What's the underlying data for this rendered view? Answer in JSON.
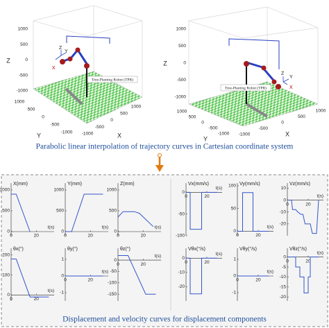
{
  "top": {
    "plots": [
      {
        "axes": [
          {
            "label": "Z",
            "lim": [
              -1000,
              1000
            ],
            "ticks": [
              -1000,
              -500,
              0,
              500,
              1000
            ]
          },
          {
            "label": "Y",
            "lim": [
              -1000,
              1000
            ],
            "ticks": [
              -1000,
              -500,
              0,
              500,
              1000
            ]
          },
          {
            "label": "X",
            "lim": [
              -1000,
              1000
            ],
            "ticks": [
              -1000,
              -500,
              0,
              500,
              1000
            ]
          }
        ],
        "robot_label": "Tree-Planting Robot (TPR)",
        "frame_labels": [
          "Z",
          "Y",
          "X"
        ]
      },
      {
        "axes": [
          {
            "label": "Z",
            "lim": [
              -1000,
              1000
            ],
            "ticks": [
              -1000,
              -500,
              0,
              500,
              1000
            ]
          },
          {
            "label": "Y",
            "lim": [
              -1000,
              1000
            ],
            "ticks": [
              -1000,
              -500,
              0,
              500,
              1000
            ]
          },
          {
            "label": "X",
            "lim": [
              -1000,
              1000
            ],
            "ticks": [
              -1000,
              -500,
              0,
              500,
              1000
            ]
          }
        ],
        "robot_label": "Tree-Planting Robot (TPR)",
        "frame_labels": [
          "Z",
          "Y",
          "X"
        ]
      }
    ],
    "caption": "Parabolic linear interpolation of trajectory curves in Cartesian coordinate system"
  },
  "bottom": {
    "caption": "Displacement and velocity curves for displacement components",
    "panels": [
      {
        "label": "X(mm)",
        "xlabel": "t(s)",
        "xlim": [
          0,
          32
        ],
        "xticks": [
          0,
          20
        ],
        "ylim": [
          -100,
          1100
        ],
        "yticks": [
          0,
          500,
          1000
        ],
        "x": [
          0,
          4,
          15
        ],
        "y": [
          900,
          900,
          0
        ]
      },
      {
        "label": "Y(mm)",
        "xlabel": "t(s)",
        "xlim": [
          0,
          32
        ],
        "xticks": [
          0,
          20
        ],
        "ylim": [
          -100,
          1100
        ],
        "yticks": [
          0,
          500,
          1000
        ],
        "x": [
          0,
          5,
          15,
          30
        ],
        "y": [
          0,
          0,
          900,
          900
        ]
      },
      {
        "label": "Z(mm)",
        "xlabel": "t(s)",
        "xlim": [
          0,
          32
        ],
        "xticks": [
          0,
          20
        ],
        "ylim": [
          -100,
          1100
        ],
        "yticks": [
          0,
          500,
          1000
        ],
        "x": [
          0,
          4,
          13,
          17,
          28
        ],
        "y": [
          350,
          480,
          480,
          440,
          120
        ]
      },
      {
        "label": "θx(°)",
        "xlabel": "t(s)",
        "xlim": [
          0,
          32
        ],
        "xticks": [
          0,
          20
        ],
        "ylim": [
          -30,
          220
        ],
        "yticks": [
          0,
          100,
          200
        ],
        "x": [
          0,
          4,
          15,
          30
        ],
        "y": [
          180,
          180,
          -10,
          -10
        ]
      },
      {
        "label": "θy(°)",
        "xlabel": "t(s)",
        "xlim": [
          0,
          32
        ],
        "xticks": [
          0,
          20
        ],
        "ylim": [
          -1.5,
          1.5
        ],
        "yticks": [
          -1,
          0,
          1
        ],
        "x": [
          0,
          30
        ],
        "y": [
          0,
          0
        ]
      },
      {
        "label": "θz(°)",
        "xlabel": "t(s)",
        "xlim": [
          0,
          32
        ],
        "xticks": [
          0,
          20
        ],
        "ylim": [
          -180,
          40
        ],
        "yticks": [
          -150,
          -100,
          -50,
          0
        ],
        "x": [
          0,
          8,
          22,
          30
        ],
        "y": [
          20,
          20,
          -150,
          -150
        ]
      },
      {
        "label": "Vx(mm/s)",
        "xlabel": "t(s)",
        "xlim": [
          0,
          32
        ],
        "xticks": [
          0,
          20
        ],
        "ylim": [
          -100,
          15
        ],
        "yticks": [
          -100,
          -50,
          0
        ],
        "x": [
          0,
          4,
          4,
          15,
          15,
          30
        ],
        "y": [
          0,
          0,
          -85,
          -85,
          0,
          0
        ]
      },
      {
        "label": "Vy(mm/s)",
        "xlabel": "t(s)",
        "xlim": [
          0,
          32
        ],
        "xticks": [
          0,
          20
        ],
        "ylim": [
          -10,
          100
        ],
        "yticks": [
          0,
          50,
          100
        ],
        "x": [
          0,
          5,
          5,
          15,
          15,
          30
        ],
        "y": [
          0,
          0,
          85,
          85,
          0,
          0
        ]
      },
      {
        "label": "Vz(mm/s)",
        "xlabel": "t(s)",
        "xlim": [
          0,
          32
        ],
        "xticks": [
          0,
          20
        ],
        "ylim": [
          -30,
          12
        ],
        "yticks": [
          -20,
          -10,
          0,
          10
        ],
        "x": [
          0,
          4,
          5,
          8,
          10,
          13,
          15,
          17,
          22,
          24,
          28,
          30
        ],
        "y": [
          0,
          0,
          -8,
          -8,
          -10,
          -12,
          -12,
          -20,
          -20,
          -28,
          -28,
          0
        ]
      },
      {
        "label": "Vθx(°/s)",
        "xlabel": "t(s)",
        "xlim": [
          0,
          32
        ],
        "xticks": [
          0,
          20
        ],
        "ylim": [
          -30,
          5
        ],
        "yticks": [
          -20,
          -10,
          0
        ],
        "x": [
          0,
          4,
          4,
          15,
          15,
          30
        ],
        "y": [
          0,
          0,
          -25,
          -25,
          0,
          0
        ]
      },
      {
        "label": "Vθy(°/s)",
        "xlabel": "t(s)",
        "xlim": [
          0,
          32
        ],
        "xticks": [
          0,
          20
        ],
        "ylim": [
          -1.5,
          1.5
        ],
        "yticks": [
          -1,
          0,
          1
        ],
        "x": [
          0,
          30
        ],
        "y": [
          0,
          0
        ]
      },
      {
        "label": "Vθz(°/s)",
        "xlabel": "t(s)",
        "xlim": [
          0,
          32
        ],
        "xticks": [
          0,
          20
        ],
        "ylim": [
          -22,
          3
        ],
        "yticks": [
          -20,
          -15,
          -10,
          -5,
          0
        ],
        "x": [
          0,
          8,
          8,
          12,
          12,
          16,
          16,
          20,
          20,
          22,
          22,
          30
        ],
        "y": [
          0,
          0,
          -5,
          -5,
          -10,
          -10,
          -18,
          -18,
          -10,
          -10,
          0,
          0
        ]
      }
    ]
  }
}
